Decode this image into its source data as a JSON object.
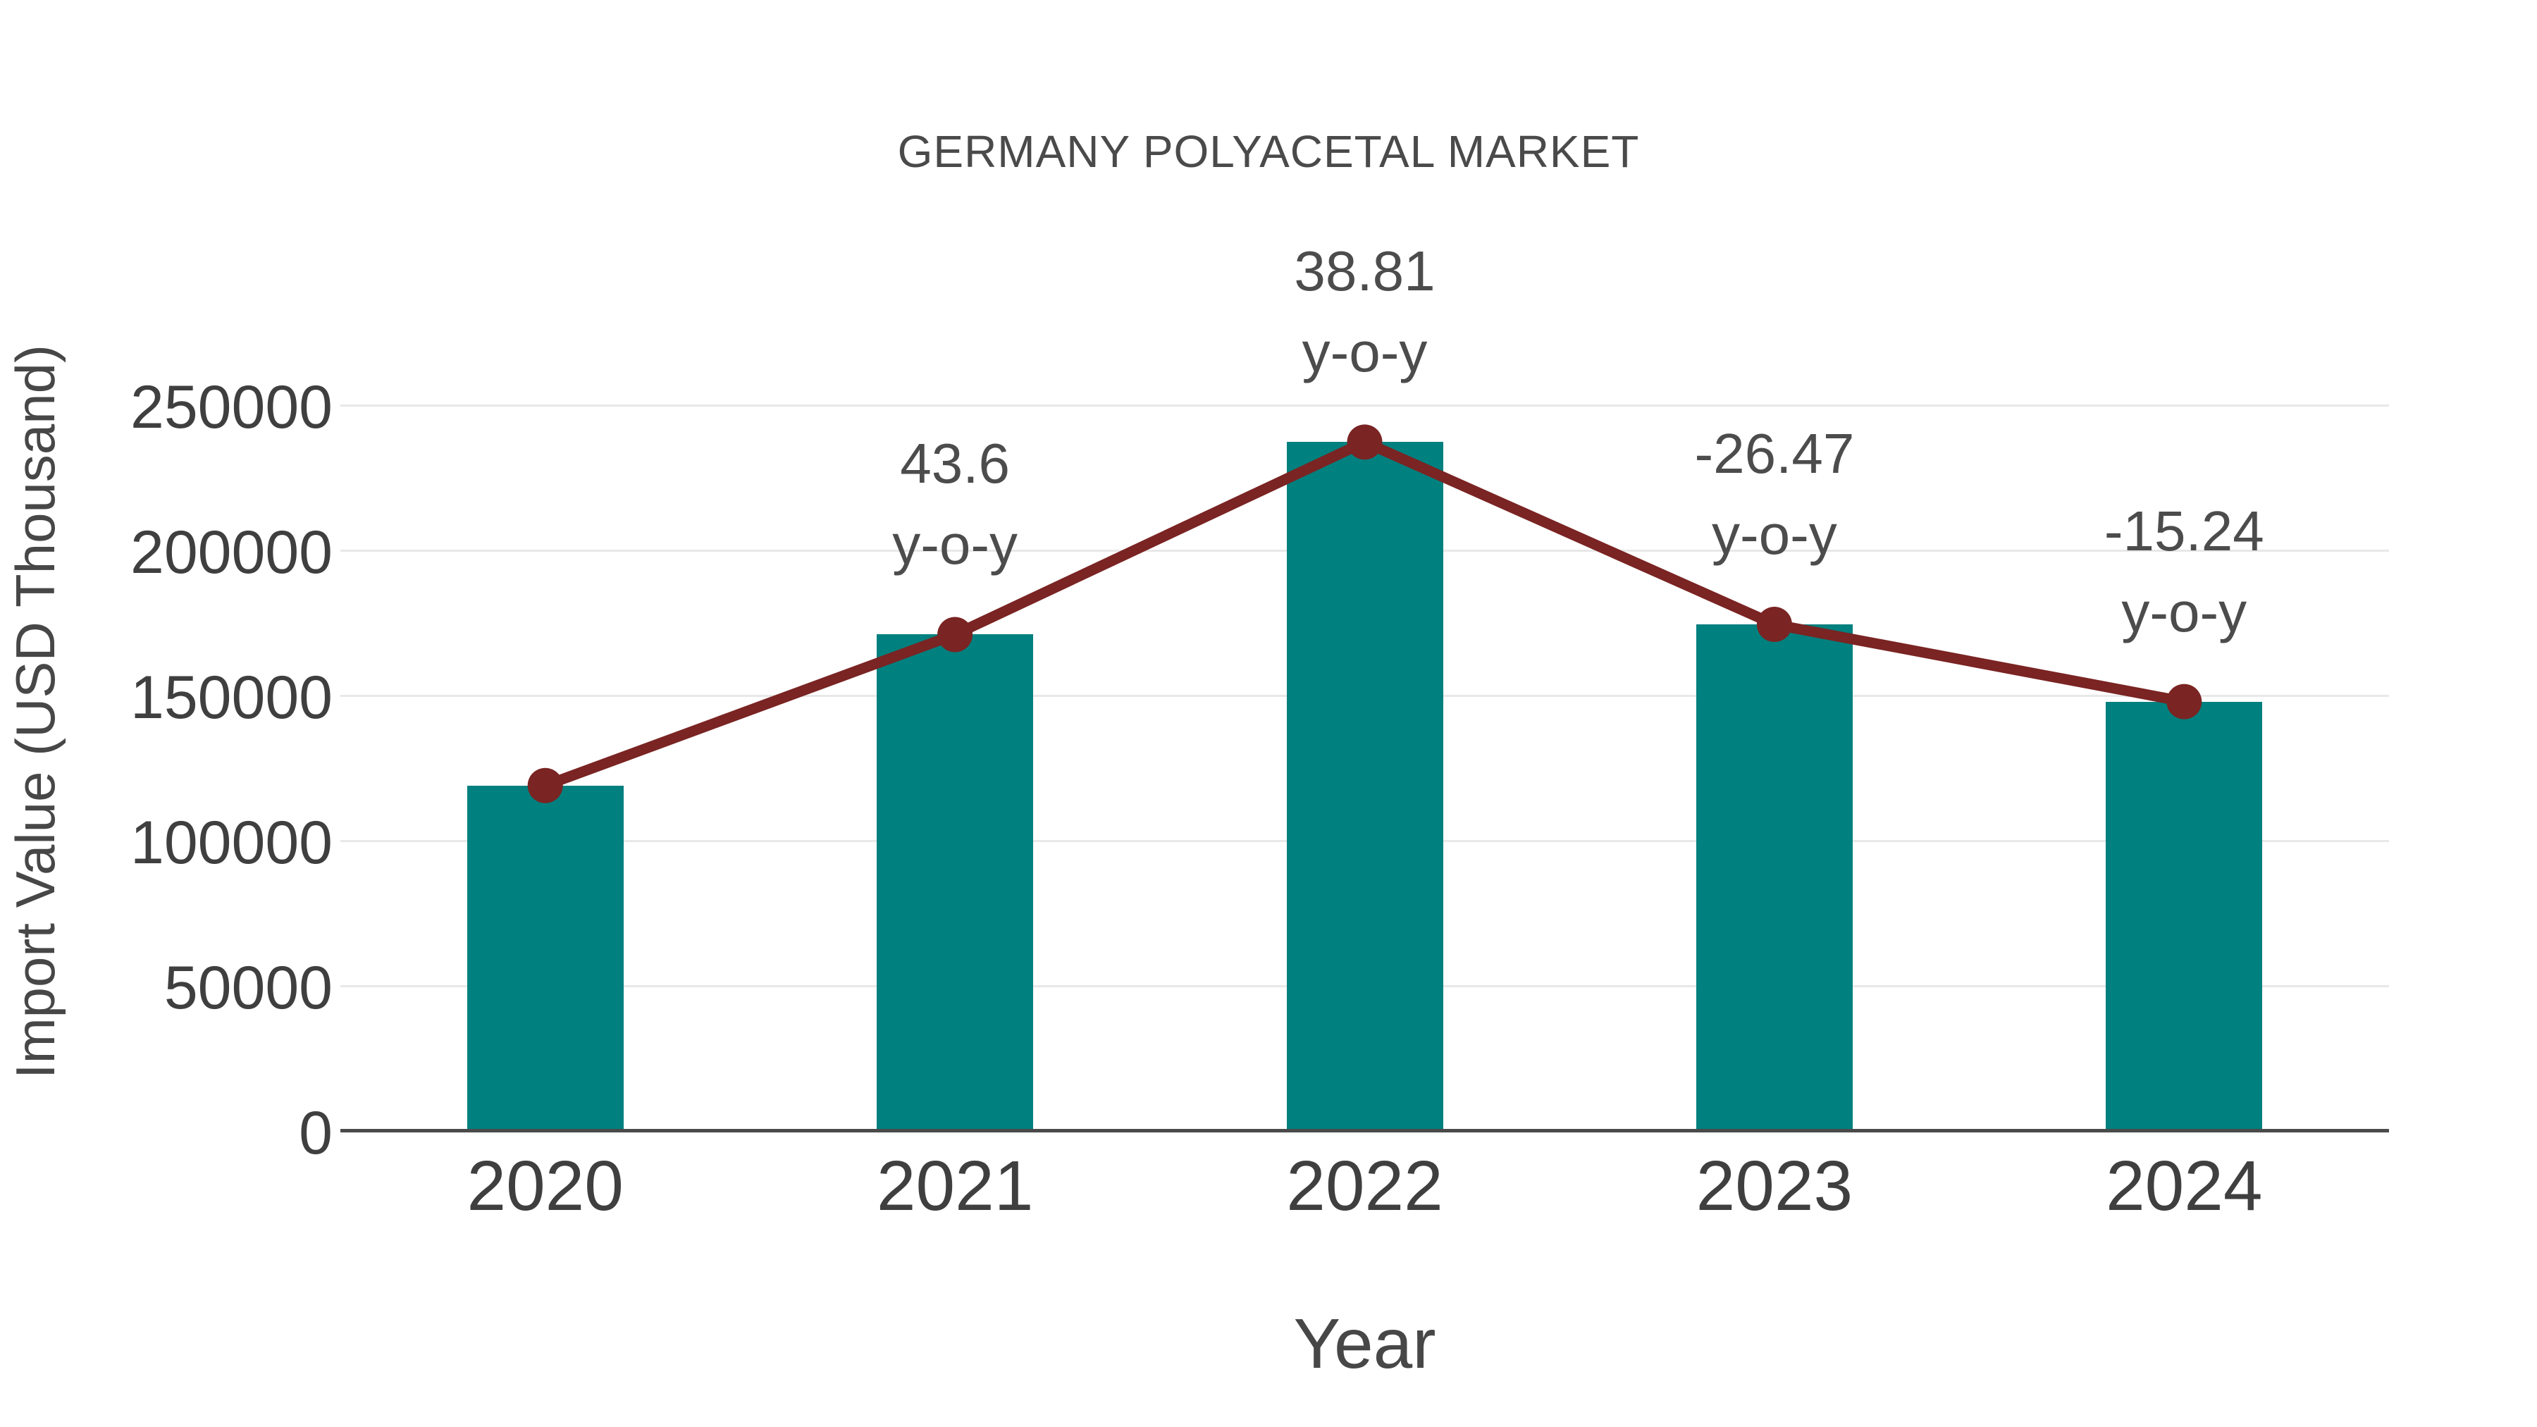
{
  "title": "GERMANY POLYACETAL MARKET",
  "colors": {
    "bar": "#00807e",
    "line": "#7a2423",
    "marker": "#7a2423",
    "gridline": "#e8e8e8",
    "axis_line": "#4a4a4a",
    "text": "#4a4a4a",
    "tick_text": "#3f3f3f"
  },
  "chart_data": {
    "type": "bar",
    "title": "GERMANY POLYACETAL MARKET",
    "xlabel": "Year",
    "ylabel": "Import Value (USD Thousand)",
    "categories": [
      "2020",
      "2021",
      "2022",
      "2023",
      "2024"
    ],
    "series": [
      {
        "name": "Import Value (USD Thousand)",
        "type": "bar",
        "values": [
          119000,
          171000,
          237300,
          174500,
          147900
        ]
      },
      {
        "name": "y-o-y growth (%)",
        "type": "line",
        "values": [
          null,
          43.6,
          38.81,
          -26.47,
          -15.24
        ]
      }
    ],
    "annotations": [
      {
        "index": 1,
        "lines": [
          "43.6",
          "y-o-y"
        ]
      },
      {
        "index": 2,
        "lines": [
          "38.81",
          "y-o-y"
        ]
      },
      {
        "index": 3,
        "lines": [
          "-26.47",
          "y-o-y"
        ]
      },
      {
        "index": 4,
        "lines": [
          "-15.24",
          "y-o-y"
        ]
      }
    ],
    "ylim": [
      0,
      250000
    ],
    "yticks": [
      0,
      50000,
      100000,
      150000,
      200000,
      250000
    ],
    "grid": "horizontal",
    "legend": "none"
  }
}
